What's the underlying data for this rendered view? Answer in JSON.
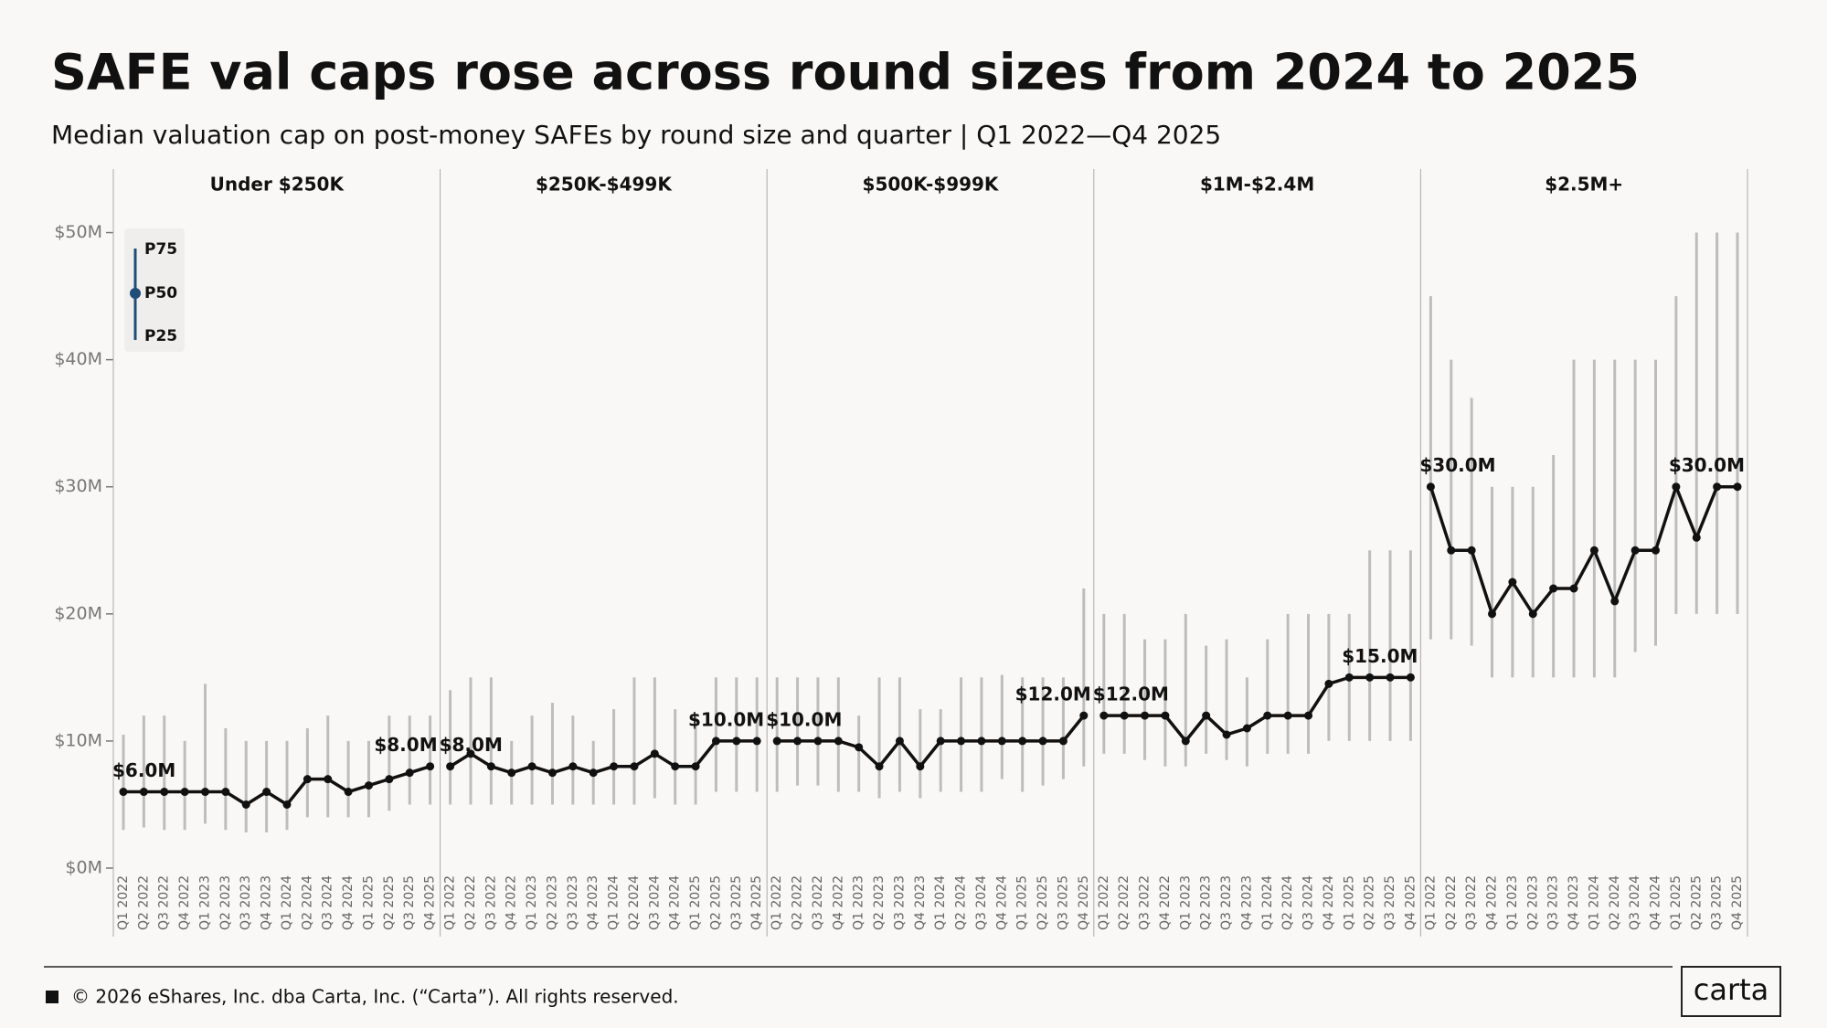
{
  "chart_data": {
    "type": "range-line",
    "title": "SAFE val caps rose across round sizes from 2024 to 2025",
    "subtitle": "Median valuation cap on post-money SAFEs by round size and quarter | Q1 2022—Q4 2025",
    "categories": [
      "Q1 2022",
      "Q2 2022",
      "Q3 2022",
      "Q4 2022",
      "Q1 2023",
      "Q2 2023",
      "Q3 2023",
      "Q4 2023",
      "Q1 2024",
      "Q2 2024",
      "Q3 2024",
      "Q4 2024",
      "Q1 2025",
      "Q2 2025",
      "Q3 2025",
      "Q4 2025"
    ],
    "legend": {
      "high": "P75",
      "mid": "P50",
      "low": "P25"
    },
    "line_color": "#111111",
    "range_color": "#bdbdbd",
    "legend_color": "#1f4e79",
    "ylim": [
      0,
      55
    ],
    "yticks": [
      {
        "value": 0,
        "label": "$0M"
      },
      {
        "value": 10,
        "label": "$10M"
      },
      {
        "value": 20,
        "label": "$20M"
      },
      {
        "value": 30,
        "label": "$30M"
      },
      {
        "value": 40,
        "label": "$40M"
      },
      {
        "value": 50,
        "label": "$50M"
      }
    ],
    "panels": [
      {
        "name": "Under $250K",
        "p50": [
          6,
          6,
          6,
          6,
          6,
          6,
          5,
          6,
          5,
          7,
          7,
          6,
          6.5,
          7,
          7.5,
          8
        ],
        "p75": [
          10.5,
          12,
          12,
          10,
          14.5,
          11,
          10,
          10,
          10,
          11,
          12,
          10,
          10,
          12,
          12,
          12
        ],
        "p25": [
          3,
          3.2,
          3,
          3,
          3.5,
          3,
          2.8,
          2.8,
          3,
          4,
          4,
          4,
          4,
          4.5,
          5,
          5
        ],
        "value_labels": [
          "$6.0M",
          null,
          null,
          null,
          null,
          null,
          null,
          null,
          null,
          null,
          null,
          null,
          null,
          null,
          null,
          "$8.0M"
        ]
      },
      {
        "name": "$250K-$499K",
        "p50": [
          8,
          9,
          8,
          7.5,
          8,
          7.5,
          8,
          7.5,
          8,
          8,
          9,
          8,
          8,
          10,
          10,
          10
        ],
        "p75": [
          14,
          15,
          15,
          10,
          12,
          13,
          12,
          10,
          12.5,
          15,
          15,
          12.5,
          12,
          15,
          15,
          15
        ],
        "p25": [
          5,
          5,
          5,
          5,
          5,
          5,
          5,
          5,
          5,
          5,
          5.5,
          5,
          5,
          6,
          6,
          6
        ],
        "value_labels": [
          "$8.0M",
          null,
          null,
          null,
          null,
          null,
          null,
          null,
          null,
          null,
          null,
          null,
          null,
          null,
          null,
          "$10.0M"
        ]
      },
      {
        "name": "$500K-$999K",
        "p50": [
          10,
          10,
          10,
          10,
          9.5,
          8,
          10,
          8,
          10,
          10,
          10,
          10,
          10,
          10,
          10,
          12
        ],
        "p75": [
          15,
          15,
          15,
          15,
          12,
          15,
          15,
          12.5,
          12.5,
          15,
          15,
          15.2,
          15,
          15,
          15,
          22
        ],
        "p25": [
          6,
          6.5,
          6.5,
          6,
          6,
          5.5,
          6,
          5.5,
          6,
          6,
          6,
          7,
          6,
          6.5,
          7,
          8
        ],
        "value_labels": [
          "$10.0M",
          null,
          null,
          null,
          null,
          null,
          null,
          null,
          null,
          null,
          null,
          null,
          null,
          null,
          null,
          "$12.0M"
        ]
      },
      {
        "name": "$1M-$2.4M",
        "p50": [
          12,
          12,
          12,
          12,
          10,
          12,
          10.5,
          11,
          12,
          12,
          12,
          14.5,
          15,
          15,
          15,
          15
        ],
        "p75": [
          20,
          20,
          18,
          18,
          20,
          17.5,
          18,
          15,
          18,
          20,
          20,
          20,
          20,
          25,
          25,
          25
        ],
        "p25": [
          9,
          9,
          8.5,
          8,
          8,
          9,
          8.5,
          8,
          9,
          9,
          9,
          10,
          10,
          10,
          10,
          10
        ],
        "value_labels": [
          "$12.0M",
          null,
          null,
          null,
          null,
          null,
          null,
          null,
          null,
          null,
          null,
          null,
          null,
          null,
          null,
          "$15.0M"
        ]
      },
      {
        "name": "$2.5M+",
        "p50": [
          30,
          25,
          25,
          20,
          22.5,
          20,
          22,
          22,
          25,
          21,
          25,
          25,
          30,
          26,
          30,
          30
        ],
        "p75": [
          45,
          40,
          37,
          30,
          30,
          30,
          32.5,
          40,
          40,
          40,
          40,
          40,
          45,
          50,
          50,
          50
        ],
        "p25": [
          18,
          18,
          17.5,
          15,
          15,
          15,
          15,
          15,
          15,
          15,
          17,
          17.5,
          20,
          20,
          20,
          20
        ],
        "value_labels": [
          "$30.0M",
          null,
          null,
          null,
          null,
          null,
          null,
          null,
          null,
          null,
          null,
          null,
          null,
          null,
          null,
          "$30.0M"
        ]
      }
    ]
  },
  "footer": {
    "copyright": "© 2026 eShares, Inc. dba Carta, Inc. (“Carta”). All rights reserved.",
    "logo": "carta"
  }
}
